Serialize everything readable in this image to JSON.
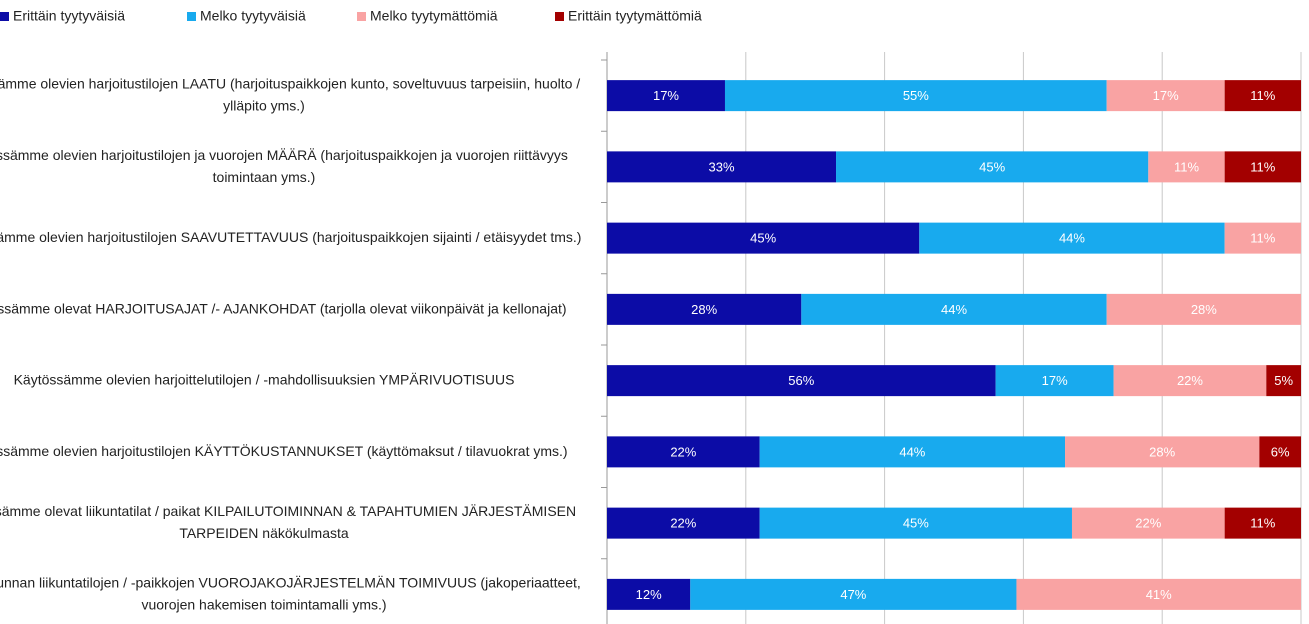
{
  "chart_data": {
    "type": "stacked_bar_horizontal",
    "categories": [
      "Käytössämme olevien harjoitustilojen LAATU (harjoituspaikkojen kunto, soveltuvuus tarpeisiin, huolto / ylläpito yms.)",
      "Käytössämme olevien harjoitustilojen ja vuorojen MÄÄRÄ (harjoituspaikkojen ja vuorojen riittävyys toimintaan yms.)",
      "Käytössämme olevien harjoitustilojen SAAVUTETTAVUUS (harjoituspaikkojen sijainti / etäisyydet tms.)",
      "Käytössämme olevat HARJOITUSAJAT /- AJANKOHDAT (tarjolla olevat viikonpäivät ja kellonajat)",
      "Käytössämme olevien harjoittelutilojen / -mahdollisuuksien YMPÄRIVUOTISUUS",
      "Käytössämme olevien harjoitustilojen KÄYTTÖKUSTANNUKSET (käyttömaksut / tilavuokrat yms.)",
      "Käytössämme olevat liikuntatilat / paikat KILPAILUTOIMINNAN & TAPAHTUMIEN JÄRJESTÄMISEN TARPEIDEN näkökulmasta",
      "Oman kunnan liikuntatilojen / -paikkojen VUOROJAKOJÄRJESTELMÄN TOIMIVUUS (jakoperiaatteet, vuorojen hakemisen toimintamalli yms.)"
    ],
    "series": [
      {
        "name": "Erittäin tyytyväisiä",
        "color": "#0c0ca6",
        "values": [
          17,
          33,
          45,
          28,
          56,
          22,
          22,
          12
        ],
        "value_labels": [
          "17%",
          "33%",
          "45%",
          "28%",
          "56%",
          "22%",
          "22%",
          "12%"
        ]
      },
      {
        "name": "Melko tyytyväisiä",
        "color": "#18aaee",
        "values": [
          55,
          45,
          44,
          44,
          17,
          44,
          45,
          47
        ],
        "value_labels": [
          "55%",
          "45%",
          "44%",
          "44%",
          "17%",
          "44%",
          "45%",
          "47%"
        ]
      },
      {
        "name": "Melko tyytymättömiä",
        "color": "#f9a3a3",
        "values": [
          17,
          11,
          11,
          28,
          22,
          28,
          22,
          41
        ],
        "value_labels": [
          "17%",
          "11%",
          "11%",
          "28%",
          "22%",
          "28%",
          "22%",
          "41%"
        ]
      },
      {
        "name": "Erittäin tyytymättömiä",
        "color": "#a30000",
        "values": [
          11,
          11,
          null,
          null,
          5,
          6,
          11,
          null
        ],
        "value_labels": [
          "11%",
          "11%",
          null,
          null,
          "5%",
          "6%",
          "11%",
          null
        ]
      }
    ],
    "xlim": [
      0,
      100
    ],
    "xticks": [
      0,
      20,
      40,
      60,
      80,
      100
    ],
    "grid": true,
    "legend": "top"
  }
}
